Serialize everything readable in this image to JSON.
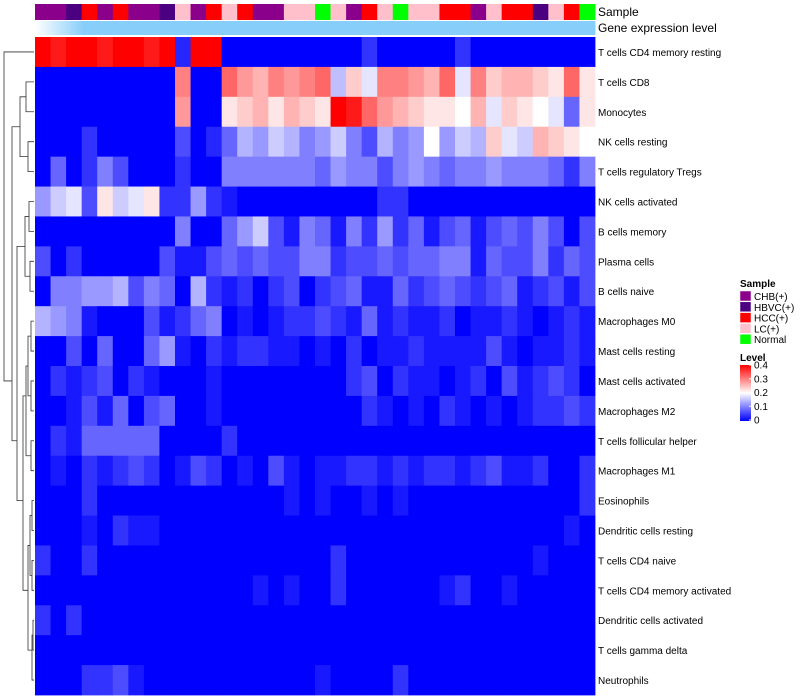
{
  "chart_data": {
    "type": "heatmap",
    "title": "",
    "annotation_tracks": [
      "Sample",
      "Gene expression level"
    ],
    "rows": [
      "T cells CD4 memory resting",
      "T cells CD8",
      "Monocytes",
      "NK cells resting",
      "T cells regulatory  Tregs",
      "NK cells activated",
      "B cells memory",
      "Plasma cells",
      "B cells naive",
      "Macrophages M0",
      "Mast cells resting",
      "Mast cells activated",
      "Macrophages M2",
      "T cells follicular helper",
      "Macrophages M1",
      "Eosinophils",
      "Dendritic cells resting",
      "T cells CD4 naive",
      "T cells CD4 memory activated",
      "Dendritic cells activated",
      "T cells gamma delta",
      "Neutrophils"
    ],
    "sample_track": [
      "CHB(+)",
      "CHB(+)",
      "HBVC(+)",
      "HCC(+)",
      "CHB(+)",
      "HCC(+)",
      "CHB(+)",
      "CHB(+)",
      "HBVC(+)",
      "LC(+)",
      "CHB(+)",
      "HCC(+)",
      "LC(+)",
      "HCC(+)",
      "CHB(+)",
      "CHB(+)",
      "LC(+)",
      "LC(+)",
      "Normal",
      "LC(+)",
      "CHB(+)",
      "HCC(+)",
      "LC(+)",
      "Normal",
      "LC(+)",
      "LC(+)",
      "HCC(+)",
      "HCC(+)",
      "CHB(+)",
      "LC(+)",
      "HCC(+)",
      "HCC(+)",
      "HBVC(+)",
      "LC(+)",
      "HCC(+)",
      "Normal"
    ],
    "expression_track": [
      0.3,
      0.3,
      0.3,
      0.3,
      0.3,
      0.3,
      0.3,
      0.3,
      0.3,
      0.3,
      0.3,
      0.3,
      0.3,
      0.3,
      0.3,
      0.3,
      0.3,
      0.3,
      0.3,
      0.3,
      0.3,
      0.3,
      0.3,
      0.3,
      0.3,
      0.3,
      0.3,
      0.3,
      0.3,
      0.3,
      0.3,
      0.3,
      0.3,
      0.3,
      0.3,
      0.3
    ],
    "values": [
      [
        0.4,
        0.38,
        0.4,
        0.4,
        0.38,
        0.4,
        0.4,
        0.38,
        0.4,
        0.03,
        0.4,
        0.4,
        0,
        0,
        0,
        0,
        0,
        0,
        0,
        0,
        0,
        0.04,
        0,
        0,
        0,
        0,
        0,
        0.04,
        0,
        0,
        0,
        0,
        0,
        0,
        0,
        0
      ],
      [
        0,
        0,
        0,
        0,
        0,
        0,
        0,
        0,
        0,
        0.3,
        0,
        0,
        0.32,
        0.28,
        0.26,
        0.3,
        0.28,
        0.3,
        0.32,
        0.15,
        0.24,
        0.18,
        0.3,
        0.3,
        0.28,
        0.26,
        0.32,
        0.18,
        0.3,
        0.24,
        0.26,
        0.26,
        0.24,
        0.22,
        0.32,
        0.22
      ],
      [
        0,
        0,
        0,
        0,
        0,
        0,
        0,
        0,
        0,
        0.28,
        0,
        0,
        0.22,
        0.24,
        0.26,
        0.22,
        0.26,
        0.24,
        0.22,
        0.4,
        0.38,
        0.32,
        0.28,
        0.26,
        0.24,
        0.22,
        0.22,
        0.2,
        0.26,
        0.18,
        0.24,
        0.22,
        0.2,
        0.18,
        0.08,
        0.22
      ],
      [
        0,
        0,
        0,
        0.04,
        0,
        0,
        0,
        0,
        0,
        0.06,
        0,
        0.03,
        0.08,
        0.14,
        0.12,
        0.16,
        0.14,
        0.1,
        0.12,
        0.16,
        0.1,
        0.06,
        0.14,
        0.1,
        0.12,
        0.2,
        0.12,
        0.16,
        0.14,
        0.24,
        0.18,
        0.16,
        0.26,
        0.24,
        0.22,
        0.2
      ],
      [
        0,
        0.08,
        0,
        0.04,
        0.1,
        0.06,
        0,
        0,
        0,
        0.04,
        0,
        0,
        0.1,
        0.1,
        0.1,
        0.1,
        0.1,
        0.1,
        0.08,
        0.12,
        0.1,
        0.1,
        0.06,
        0.1,
        0.12,
        0.1,
        0.08,
        0.1,
        0.1,
        0.12,
        0.1,
        0.1,
        0.1,
        0.08,
        0.04,
        0.1
      ],
      [
        0.12,
        0.16,
        0.18,
        0.06,
        0.22,
        0.16,
        0.18,
        0.22,
        0.04,
        0.04,
        0.12,
        0.04,
        0.02,
        0,
        0,
        0,
        0,
        0,
        0,
        0,
        0,
        0,
        0.04,
        0.04,
        0,
        0,
        0,
        0,
        0,
        0,
        0,
        0,
        0,
        0,
        0,
        0
      ],
      [
        0,
        0,
        0,
        0,
        0,
        0,
        0,
        0,
        0,
        0.1,
        0,
        0,
        0.08,
        0.12,
        0.16,
        0.06,
        0.02,
        0.1,
        0.08,
        0.02,
        0.1,
        0.04,
        0.12,
        0.04,
        0.08,
        0.02,
        0.06,
        0.08,
        0.02,
        0.06,
        0.08,
        0.06,
        0.1,
        0.06,
        0,
        0.06
      ],
      [
        0.06,
        0,
        0.04,
        0,
        0,
        0,
        0,
        0,
        0.06,
        0.02,
        0.02,
        0.06,
        0.08,
        0.06,
        0.08,
        0.06,
        0.06,
        0.1,
        0.1,
        0.04,
        0.06,
        0.06,
        0.08,
        0.06,
        0.08,
        0.08,
        0.1,
        0.1,
        0.02,
        0.08,
        0.06,
        0.06,
        0.1,
        0.04,
        0.08,
        0.06
      ],
      [
        0,
        0.1,
        0.1,
        0.12,
        0.12,
        0.14,
        0.06,
        0.1,
        0.08,
        0,
        0.14,
        0.04,
        0.02,
        0.04,
        0,
        0.04,
        0.06,
        0,
        0.04,
        0.06,
        0.08,
        0.02,
        0.02,
        0.08,
        0.04,
        0.06,
        0.08,
        0.06,
        0.04,
        0.06,
        0.08,
        0.02,
        0.04,
        0.06,
        0.02,
        0.06
      ],
      [
        0.14,
        0.12,
        0.1,
        0.02,
        0,
        0,
        0,
        0.06,
        0.02,
        0.04,
        0.08,
        0.1,
        0,
        0.02,
        0,
        0.02,
        0.04,
        0.04,
        0.06,
        0.04,
        0.02,
        0.08,
        0.02,
        0.04,
        0.02,
        0.02,
        0.04,
        0,
        0.02,
        0.02,
        0.04,
        0.02,
        0,
        0.02,
        0.04,
        0.02
      ],
      [
        0,
        0,
        0.06,
        0,
        0.08,
        0,
        0,
        0.08,
        0.12,
        0.02,
        0,
        0.04,
        0.02,
        0.04,
        0.04,
        0.02,
        0.02,
        0,
        0.02,
        0,
        0.04,
        0,
        0.02,
        0.02,
        0.04,
        0.02,
        0.02,
        0.02,
        0.02,
        0.06,
        0.02,
        0,
        0.02,
        0.02,
        0.04,
        0.02
      ],
      [
        0,
        0.04,
        0.02,
        0.04,
        0.06,
        0,
        0.04,
        0.02,
        0,
        0,
        0,
        0.02,
        0,
        0,
        0,
        0,
        0,
        0,
        0,
        0,
        0.04,
        0.06,
        0,
        0.04,
        0.02,
        0.02,
        0,
        0.02,
        0.04,
        0,
        0.06,
        0.02,
        0.04,
        0.06,
        0.04,
        0
      ],
      [
        0,
        0,
        0.02,
        0.06,
        0.02,
        0.08,
        0,
        0.06,
        0.08,
        0,
        0,
        0.02,
        0,
        0,
        0,
        0,
        0,
        0,
        0,
        0,
        0,
        0.04,
        0.02,
        0,
        0.02,
        0,
        0.04,
        0.02,
        0,
        0.02,
        0,
        0.02,
        0.04,
        0.04,
        0.06,
        0.04
      ],
      [
        0,
        0.04,
        0.02,
        0.08,
        0.08,
        0.08,
        0.08,
        0.08,
        0,
        0,
        0,
        0,
        0.04,
        0,
        0,
        0,
        0,
        0,
        0,
        0,
        0,
        0,
        0,
        0,
        0,
        0,
        0,
        0,
        0,
        0,
        0,
        0,
        0,
        0,
        0,
        0
      ],
      [
        0,
        0.02,
        0,
        0.04,
        0.02,
        0.04,
        0.06,
        0.04,
        0,
        0.02,
        0.06,
        0.04,
        0,
        0.02,
        0,
        0.06,
        0.02,
        0,
        0.02,
        0.02,
        0.04,
        0.04,
        0.02,
        0.04,
        0.02,
        0.04,
        0.04,
        0.02,
        0.04,
        0.06,
        0.02,
        0.02,
        0.04,
        0,
        0,
        0.04
      ],
      [
        0,
        0,
        0,
        0.04,
        0,
        0,
        0,
        0,
        0,
        0,
        0,
        0,
        0,
        0,
        0,
        0,
        0.02,
        0,
        0.02,
        0,
        0,
        0.02,
        0,
        0.02,
        0,
        0,
        0,
        0,
        0,
        0,
        0,
        0,
        0,
        0,
        0,
        0.04
      ],
      [
        0,
        0,
        0,
        0.02,
        0,
        0.04,
        0.02,
        0.02,
        0,
        0,
        0,
        0,
        0,
        0,
        0,
        0,
        0,
        0,
        0,
        0,
        0,
        0,
        0,
        0,
        0,
        0,
        0,
        0,
        0,
        0,
        0,
        0,
        0,
        0,
        0.02,
        0
      ],
      [
        0.04,
        0,
        0,
        0.04,
        0,
        0,
        0,
        0,
        0,
        0,
        0,
        0,
        0,
        0,
        0,
        0,
        0,
        0,
        0,
        0.04,
        0,
        0,
        0,
        0,
        0,
        0,
        0,
        0,
        0,
        0,
        0,
        0,
        0.02,
        0,
        0,
        0
      ],
      [
        0,
        0,
        0,
        0,
        0,
        0,
        0,
        0,
        0,
        0,
        0,
        0,
        0,
        0,
        0.02,
        0,
        0.02,
        0,
        0,
        0.04,
        0,
        0,
        0,
        0,
        0,
        0,
        0.02,
        0.04,
        0,
        0,
        0.02,
        0,
        0,
        0,
        0,
        0
      ],
      [
        0.04,
        0,
        0.04,
        0,
        0,
        0,
        0,
        0,
        0,
        0,
        0,
        0,
        0,
        0,
        0,
        0,
        0,
        0,
        0,
        0,
        0,
        0,
        0,
        0,
        0,
        0,
        0,
        0,
        0,
        0,
        0,
        0,
        0,
        0,
        0,
        0
      ],
      [
        0,
        0,
        0,
        0,
        0,
        0,
        0,
        0,
        0,
        0,
        0,
        0,
        0,
        0,
        0,
        0,
        0,
        0,
        0,
        0,
        0,
        0,
        0,
        0,
        0,
        0,
        0,
        0,
        0,
        0,
        0,
        0,
        0,
        0,
        0,
        0
      ],
      [
        0,
        0,
        0,
        0.04,
        0.04,
        0.06,
        0.02,
        0,
        0,
        0,
        0,
        0,
        0,
        0,
        0,
        0,
        0,
        0,
        0.02,
        0,
        0,
        0,
        0,
        0.04,
        0,
        0,
        0,
        0,
        0,
        0,
        0,
        0,
        0,
        0,
        0,
        0
      ]
    ],
    "legend_sample": {
      "title": "Sample",
      "entries": [
        {
          "label": "CHB(+)",
          "color": "#8b008b"
        },
        {
          "label": "HBVC(+)",
          "color": "#4b0082"
        },
        {
          "label": "HCC(+)",
          "color": "#ff0000"
        },
        {
          "label": "LC(+)",
          "color": "#ffc0cb"
        },
        {
          "label": "Normal",
          "color": "#00ff00"
        }
      ]
    },
    "legend_level": {
      "title": "Level",
      "ticks": [
        "0.4",
        "0.3",
        "0.2",
        "0.1",
        "0"
      ],
      "range": [
        0,
        0.4
      ],
      "colors": {
        "low": "#0000ff",
        "mid": "#ffffff",
        "high": "#ff0000"
      }
    },
    "expression_track_color": "#87cefa"
  }
}
